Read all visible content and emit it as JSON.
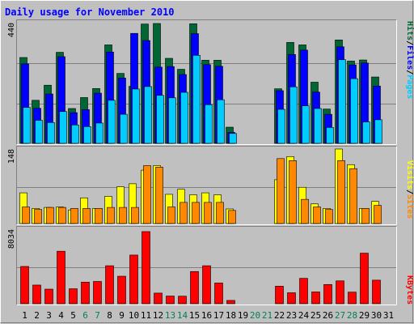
{
  "title": "Daily usage for November 2010",
  "colors": {
    "background": "#c0c0c0",
    "frame_light": "#ffffff",
    "frame_dark": "#808080",
    "title_text": "#0000ff",
    "grid": "#808080",
    "hits": "#006633",
    "files": "#0000ff",
    "pages": "#00ccff",
    "visits": "#ffff00",
    "sites": "#ff8800",
    "kbytes": "#ff0000",
    "weekday_label": "#000000",
    "weekend_label": "#00805a"
  },
  "panels": {
    "hits": {
      "max_label": "440",
      "legend": {
        "pages": "Pages",
        "sep1": "/",
        "files": "Files",
        "sep2": "/",
        "hits": "Hits"
      }
    },
    "visits": {
      "max_label": "148",
      "legend": {
        "sites": "Sites",
        "sep1": "/",
        "visits": "Visits"
      }
    },
    "kbytes": {
      "max_label": "8034",
      "legend": {
        "kbytes": "KBytes"
      }
    }
  },
  "chart_data": {
    "type": "bar",
    "title": "Daily usage for November 2010",
    "days": [
      "1",
      "2",
      "3",
      "4",
      "5",
      "6",
      "7",
      "8",
      "9",
      "10",
      "11",
      "12",
      "13",
      "14",
      "15",
      "16",
      "17",
      "18",
      "19",
      "20",
      "21",
      "22",
      "23",
      "24",
      "25",
      "26",
      "27",
      "28",
      "29",
      "30",
      "31"
    ],
    "weekend_days": [
      "6",
      "7",
      "13",
      "14",
      "20",
      "21",
      "27",
      "28"
    ],
    "hits_panel": {
      "ylim": [
        0,
        440
      ],
      "series": [
        {
          "name": "Hits",
          "values": [
            313,
            157,
            212,
            332,
            127,
            167,
            200,
            359,
            255,
            208,
            435,
            437,
            310,
            270,
            436,
            303,
            303,
            59,
            0,
            0,
            0,
            199,
            368,
            359,
            223,
            125,
            377,
            300,
            304,
            242,
            0
          ]
        },
        {
          "name": "Files",
          "values": [
            290,
            128,
            180,
            316,
            112,
            123,
            183,
            333,
            238,
            401,
            375,
            278,
            280,
            251,
            400,
            287,
            281,
            40,
            0,
            0,
            0,
            192,
            324,
            340,
            187,
            106,
            352,
            286,
            293,
            209,
            0
          ]
        },
        {
          "name": "Pages",
          "values": [
            131,
            84,
            76,
            116,
            67,
            61,
            74,
            157,
            106,
            198,
            207,
            175,
            166,
            186,
            321,
            141,
            159,
            36,
            0,
            0,
            0,
            124,
            206,
            137,
            127,
            58,
            305,
            236,
            78,
            86,
            0
          ]
        }
      ]
    },
    "visits_panel": {
      "ylim": [
        0,
        148
      ],
      "series": [
        {
          "name": "Visits",
          "values": [
            61,
            30,
            32,
            33,
            27,
            51,
            30,
            54,
            73,
            79,
            106,
            115,
            58,
            68,
            57,
            61,
            57,
            29,
            0,
            0,
            0,
            87,
            133,
            72,
            39,
            30,
            148,
            117,
            30,
            44,
            0
          ]
        },
        {
          "name": "Sites",
          "values": [
            33,
            28,
            32,
            32,
            30,
            30,
            30,
            32,
            32,
            32,
            115,
            112,
            33,
            42,
            42,
            42,
            42,
            26,
            0,
            0,
            0,
            129,
            125,
            48,
            33,
            28,
            125,
            109,
            30,
            36,
            0
          ]
        }
      ]
    },
    "kbytes_panel": {
      "ylim": [
        0,
        8034
      ],
      "series": [
        {
          "name": "KBytes",
          "values": [
            4018,
            2012,
            1570,
            5660,
            1613,
            2330,
            2400,
            4095,
            2966,
            5246,
            7776,
            1143,
            827,
            811,
            3472,
            4095,
            2232,
            355,
            0,
            0,
            0,
            1888,
            1181,
            2736,
            1270,
            2073,
            2463,
            1250,
            5450,
            2540,
            0
          ]
        }
      ]
    }
  }
}
